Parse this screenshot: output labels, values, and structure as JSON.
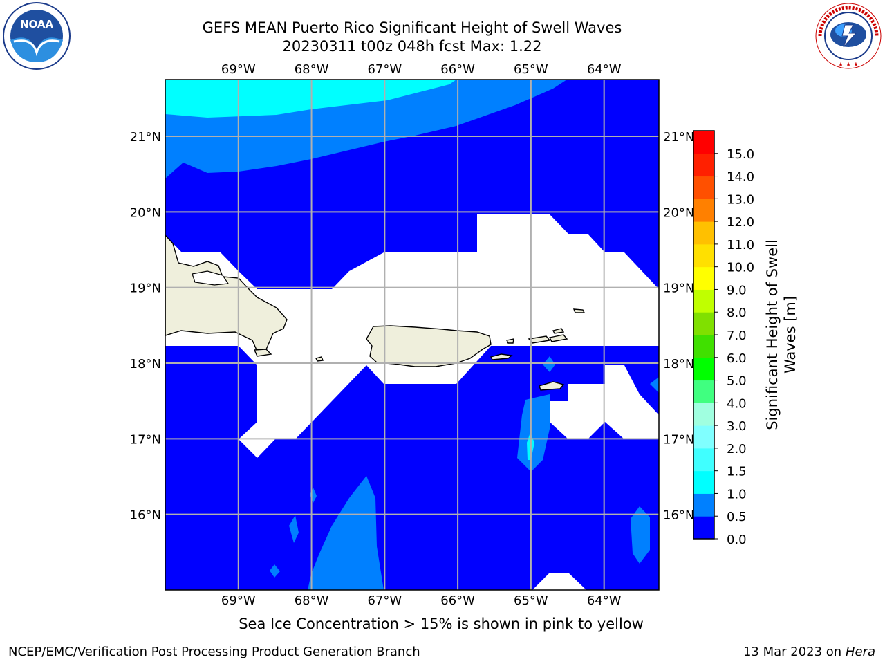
{
  "title": {
    "line1": "GEFS MEAN Puerto Rico Significant Height of Swell Waves",
    "line2": "20230311 t00z 048h fcst   Max: 1.22"
  },
  "map": {
    "lon_labels": [
      "69°W",
      "68°W",
      "67°W",
      "66°W",
      "65°W",
      "64°W"
    ],
    "lat_labels": [
      "21°N",
      "20°N",
      "19°N",
      "18°N",
      "17°N",
      "16°N"
    ],
    "lon_range": [
      -70.0,
      -63.25
    ],
    "lat_range": [
      15.0,
      21.75
    ]
  },
  "colorbar": {
    "label": "Significant Height of Swell Waves [m]",
    "ticks": [
      "0.0",
      "0.5",
      "1.0",
      "1.5",
      "2.0",
      "3.0",
      "4.0",
      "5.0",
      "6.0",
      "7.0",
      "8.0",
      "9.0",
      "10.0",
      "11.0",
      "12.0",
      "13.0",
      "14.0",
      "15.0"
    ],
    "colors": [
      "#0000ff",
      "#0080ff",
      "#00ffff",
      "#40ffff",
      "#80ffff",
      "#a0ffe0",
      "#40ff80",
      "#00ff00",
      "#40e000",
      "#80e000",
      "#c0ff00",
      "#ffff00",
      "#ffe000",
      "#ffc000",
      "#ff8000",
      "#ff5000",
      "#ff2000",
      "#ff0000"
    ]
  },
  "note": "Sea Ice Concentration > 15% is shown in pink to yellow",
  "footer": {
    "left": "NCEP/EMC/Verification Post Processing Product Generation Branch",
    "right_date": "13 Mar 2023 on",
    "right_host": "Hera"
  },
  "logos": {
    "noaa": "NOAA",
    "nws": "NATIONAL WEATHER SERVICE"
  },
  "colors": {
    "swell_low": "#0000ff",
    "swell_mid": "#0080ff",
    "swell_high": "#00ffff",
    "land": "#efefdc",
    "grid": "#b0b0b0"
  }
}
